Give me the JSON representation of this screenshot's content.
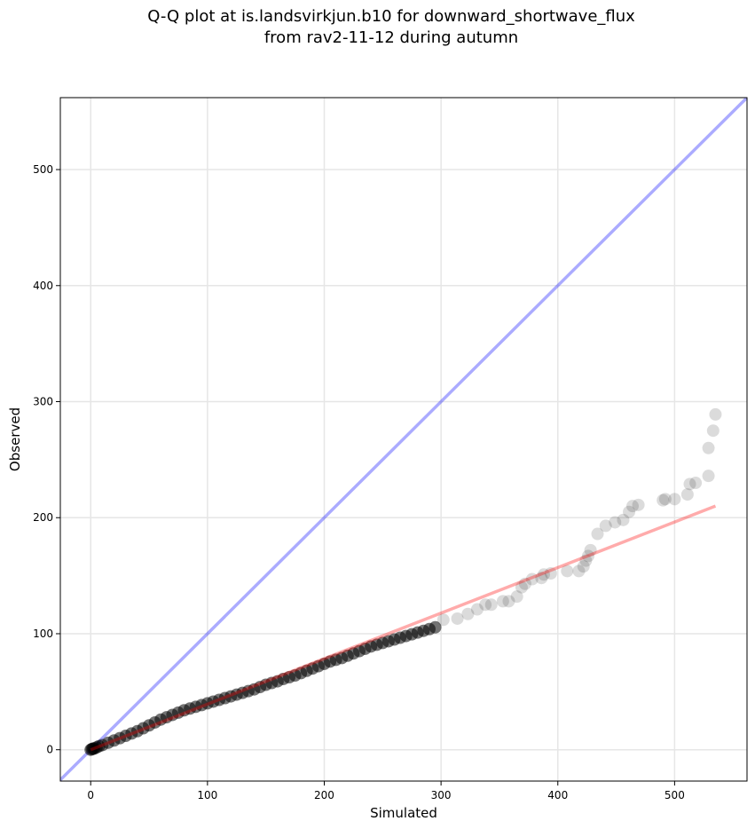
{
  "chart_data": {
    "type": "scatter",
    "title_line1": "Q-Q plot at is.landsvirkjun.b10 for downward_shortwave_flux",
    "title_line2": "from rav2-11-12 during autumn",
    "xlabel": "Simulated",
    "ylabel": "Observed",
    "xlim": [
      -26,
      562
    ],
    "ylim": [
      -27,
      562
    ],
    "xticks": [
      0,
      100,
      200,
      300,
      400,
      500
    ],
    "yticks": [
      0,
      100,
      200,
      300,
      400,
      500
    ],
    "grid": true,
    "reference_line": {
      "name": "1:1 line",
      "color": "#0000ff",
      "from": [
        -26,
        -26
      ],
      "to": [
        562,
        562
      ]
    },
    "fit_line": {
      "name": "fit",
      "color": "#ff0000",
      "from": [
        0,
        0
      ],
      "to": [
        535,
        210
      ]
    },
    "points": [
      [
        0,
        0
      ],
      [
        1,
        0.5
      ],
      [
        2,
        1
      ],
      [
        3,
        1
      ],
      [
        5,
        2
      ],
      [
        7,
        3
      ],
      [
        10,
        4
      ],
      [
        15,
        6
      ],
      [
        20,
        8
      ],
      [
        25,
        10
      ],
      [
        30,
        12
      ],
      [
        35,
        14
      ],
      [
        40,
        16
      ],
      [
        45,
        18.5
      ],
      [
        50,
        21
      ],
      [
        55,
        23.5
      ],
      [
        60,
        26
      ],
      [
        65,
        28
      ],
      [
        70,
        30
      ],
      [
        75,
        32
      ],
      [
        80,
        34
      ],
      [
        85,
        35.5
      ],
      [
        90,
        37
      ],
      [
        95,
        38.5
      ],
      [
        100,
        40
      ],
      [
        105,
        41.5
      ],
      [
        110,
        43
      ],
      [
        115,
        44.5
      ],
      [
        120,
        46
      ],
      [
        125,
        47.5
      ],
      [
        130,
        49
      ],
      [
        135,
        50.5
      ],
      [
        140,
        52
      ],
      [
        145,
        54
      ],
      [
        150,
        56
      ],
      [
        155,
        57.5
      ],
      [
        160,
        59
      ],
      [
        165,
        61
      ],
      [
        170,
        62.5
      ],
      [
        175,
        64
      ],
      [
        180,
        66
      ],
      [
        185,
        68
      ],
      [
        190,
        70
      ],
      [
        195,
        72
      ],
      [
        200,
        74
      ],
      [
        205,
        76
      ],
      [
        210,
        77.5
      ],
      [
        215,
        79
      ],
      [
        220,
        81
      ],
      [
        225,
        83
      ],
      [
        230,
        85
      ],
      [
        235,
        87
      ],
      [
        240,
        89
      ],
      [
        245,
        90.5
      ],
      [
        250,
        92
      ],
      [
        255,
        93.5
      ],
      [
        260,
        95
      ],
      [
        265,
        96.5
      ],
      [
        270,
        98
      ],
      [
        275,
        99.5
      ],
      [
        280,
        101
      ],
      [
        285,
        102.5
      ],
      [
        290,
        104
      ],
      [
        295,
        105.5
      ],
      [
        302,
        112
      ],
      [
        314,
        113
      ],
      [
        323,
        117
      ],
      [
        331,
        121
      ],
      [
        338,
        125
      ],
      [
        343,
        125
      ],
      [
        353,
        128
      ],
      [
        358,
        128
      ],
      [
        365,
        132
      ],
      [
        369,
        140
      ],
      [
        372,
        143
      ],
      [
        378,
        147
      ],
      [
        386,
        148
      ],
      [
        388,
        151
      ],
      [
        394,
        152
      ],
      [
        408,
        154
      ],
      [
        418,
        154
      ],
      [
        422,
        158
      ],
      [
        424,
        163
      ],
      [
        426,
        167
      ],
      [
        428,
        172
      ],
      [
        434,
        186
      ],
      [
        441,
        193
      ],
      [
        449,
        196
      ],
      [
        456,
        198
      ],
      [
        461,
        205
      ],
      [
        464,
        210
      ],
      [
        469,
        211
      ],
      [
        490,
        215
      ],
      [
        492,
        216
      ],
      [
        500,
        216
      ],
      [
        511,
        220
      ],
      [
        513,
        229
      ],
      [
        518,
        230
      ],
      [
        529,
        236
      ],
      [
        529,
        260
      ],
      [
        533,
        275
      ],
      [
        535,
        289
      ]
    ]
  }
}
